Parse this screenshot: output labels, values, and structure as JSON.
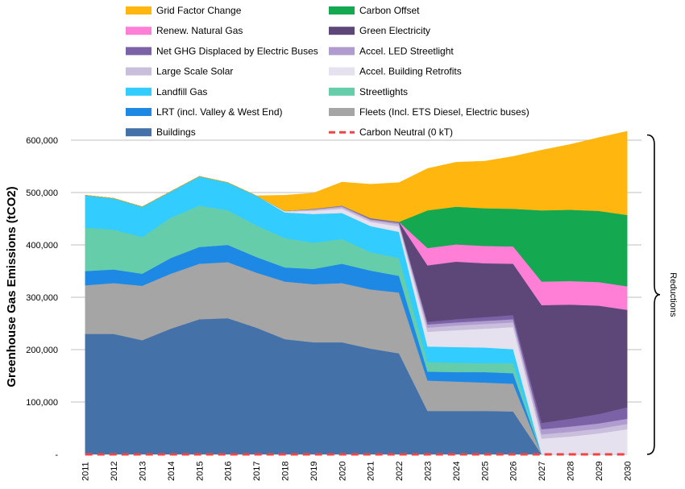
{
  "chart_data": {
    "type": "area",
    "title": "",
    "xlabel": "",
    "ylabel": "Greenhouse Gas Emissions (tCO2)",
    "ylim": [
      0,
      650000
    ],
    "yticks": [
      0,
      100000,
      200000,
      300000,
      400000,
      500000,
      600000
    ],
    "ytick_labels": [
      "-",
      "100,000",
      "200,000",
      "300,000",
      "400,000",
      "500,000",
      "600,000"
    ],
    "grid": true,
    "legend_position": "top",
    "categories": [
      "2011",
      "2012",
      "2013",
      "2014",
      "2015",
      "2016",
      "2017",
      "2018",
      "2019",
      "2020",
      "2021",
      "2022",
      "2023",
      "2024",
      "2025",
      "2026",
      "2027",
      "2028",
      "2029",
      "2030"
    ],
    "series": [
      {
        "name": "Buildings",
        "color": "#4472a8",
        "values": [
          230000,
          230000,
          218000,
          240000,
          258000,
          260000,
          242000,
          220000,
          214000,
          214000,
          202000,
          193000,
          83000,
          83000,
          83000,
          82000,
          0,
          0,
          0,
          0
        ]
      },
      {
        "name": "Fleets (Incl. ETS Diesel, Electric buses)",
        "color": "#a5a5a5",
        "values": [
          93000,
          97000,
          104000,
          105000,
          106000,
          107000,
          105000,
          110000,
          111000,
          113000,
          113000,
          116000,
          58000,
          56000,
          54000,
          53000,
          0,
          0,
          0,
          0
        ]
      },
      {
        "name": "LRT (incl. Valley & West End)",
        "color": "#1e88e5",
        "values": [
          27000,
          26000,
          23000,
          30000,
          32000,
          33000,
          30000,
          27000,
          29000,
          37000,
          36000,
          32000,
          17000,
          18000,
          20000,
          20000,
          0,
          0,
          0,
          0
        ]
      },
      {
        "name": "Streetlights",
        "color": "#66cdaa",
        "values": [
          83000,
          76000,
          70000,
          77000,
          79000,
          66000,
          60000,
          56000,
          50000,
          47000,
          35000,
          34000,
          18000,
          18000,
          17000,
          19000,
          0,
          0,
          0,
          0
        ]
      },
      {
        "name": "Landfill Gas",
        "color": "#33ccff",
        "values": [
          62000,
          60000,
          58000,
          50000,
          56000,
          53000,
          57000,
          49000,
          55000,
          50000,
          50000,
          50000,
          30000,
          30000,
          30000,
          27000,
          0,
          0,
          0,
          0
        ]
      },
      {
        "name": "Accel. Building Retrofits",
        "color": "#e6e1ef",
        "values": [
          0,
          0,
          0,
          0,
          0,
          0,
          0,
          2000,
          6000,
          8000,
          8000,
          10000,
          28000,
          32000,
          36000,
          42000,
          30000,
          34000,
          40000,
          48000
        ]
      },
      {
        "name": "Large Scale Solar",
        "color": "#c9bedc",
        "values": [
          0,
          0,
          0,
          0,
          0,
          0,
          0,
          1000,
          2000,
          3000,
          3000,
          4000,
          8000,
          9000,
          9000,
          9000,
          8000,
          9000,
          9000,
          10000
        ]
      },
      {
        "name": "Accel. LED Streetlight",
        "color": "#b09ccf",
        "values": [
          0,
          0,
          0,
          0,
          0,
          0,
          0,
          0,
          1000,
          2000,
          2000,
          3000,
          6000,
          6000,
          6000,
          6000,
          10000,
          10000,
          10000,
          10000
        ]
      },
      {
        "name": "Net GHG Displaced by Electric Buses",
        "color": "#7b62a6",
        "values": [
          0,
          0,
          0,
          0,
          0,
          0,
          0,
          0,
          1000,
          1000,
          2000,
          2000,
          5000,
          6000,
          7000,
          8000,
          12000,
          15000,
          18000,
          22000
        ]
      },
      {
        "name": "Green Electricity",
        "color": "#5d4778",
        "values": [
          0,
          0,
          0,
          0,
          0,
          0,
          0,
          0,
          0,
          0,
          0,
          0,
          108000,
          110000,
          103000,
          98000,
          225000,
          218000,
          207000,
          186000
        ]
      },
      {
        "name": "Renew. Natural Gas",
        "color": "#ff7fd7",
        "values": [
          0,
          0,
          0,
          0,
          0,
          0,
          0,
          0,
          0,
          0,
          0,
          0,
          33000,
          33000,
          33000,
          33000,
          45000,
          45000,
          45000,
          45000
        ]
      },
      {
        "name": "Carbon Offset",
        "color": "#14a850",
        "values": [
          0,
          0,
          0,
          0,
          0,
          0,
          0,
          0,
          0,
          0,
          0,
          0,
          72000,
          72000,
          72000,
          72000,
          136000,
          136000,
          136000,
          136000
        ]
      },
      {
        "name": "Grid Factor Change",
        "color": "#ffb60f",
        "values": [
          0,
          0,
          0,
          0,
          0,
          0,
          0,
          30000,
          30000,
          45000,
          65000,
          75000,
          80000,
          85000,
          90000,
          100000,
          115000,
          125000,
          140000,
          160000
        ]
      }
    ],
    "reference_line": {
      "name": "Carbon Neutral (0 kT)",
      "value": 0,
      "color": "#ee4444"
    },
    "legend": [
      {
        "name": "Grid Factor Change",
        "color": "#ffb60f",
        "kind": "box"
      },
      {
        "name": "Carbon Offset",
        "color": "#14a850",
        "kind": "box"
      },
      {
        "name": "Renew. Natural Gas",
        "color": "#ff7fd7",
        "kind": "box"
      },
      {
        "name": "Green Electricity",
        "color": "#5d4778",
        "kind": "box"
      },
      {
        "name": "Net GHG Displaced by Electric Buses",
        "color": "#7b62a6",
        "kind": "box"
      },
      {
        "name": "Accel. LED Streetlight",
        "color": "#b09ccf",
        "kind": "box"
      },
      {
        "name": "Large Scale Solar",
        "color": "#c9bedc",
        "kind": "box"
      },
      {
        "name": "Accel. Building Retrofits",
        "color": "#e6e1ef",
        "kind": "box"
      },
      {
        "name": "Landfill Gas",
        "color": "#33ccff",
        "kind": "box"
      },
      {
        "name": "Streetlights",
        "color": "#66cdaa",
        "kind": "box"
      },
      {
        "name": "LRT (incl. Valley & West End)",
        "color": "#1e88e5",
        "kind": "box"
      },
      {
        "name": "Fleets (Incl. ETS Diesel, Electric buses)",
        "color": "#a5a5a5",
        "kind": "box"
      },
      {
        "name": "Buildings",
        "color": "#4472a8",
        "kind": "box"
      },
      {
        "name": "Carbon Neutral (0 kT)",
        "color": "#ee4444",
        "kind": "dash"
      }
    ],
    "annotations": [
      {
        "text": "Reductions",
        "type": "brace",
        "from": 610000,
        "to": 0
      }
    ]
  }
}
